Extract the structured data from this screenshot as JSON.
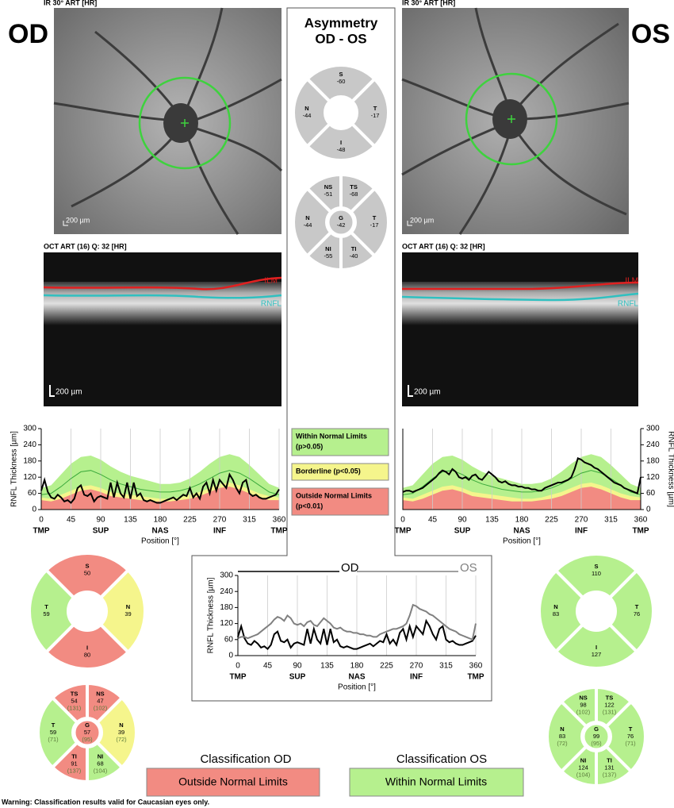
{
  "od": {
    "label": "OD",
    "fundus_label": "IR 30° ART [HR]",
    "fundus_scale": "200 µm",
    "oct_label": "OCT ART (16) Q: 32 [HR]",
    "oct_scale": "200 µm",
    "oct_ilm": "ILM",
    "oct_rnfl": "RNFL",
    "sectors_4": {
      "temporal_side": "left",
      "sectors": [
        {
          "label": "S",
          "value": 50,
          "color": "#f28b82"
        },
        {
          "label": "T",
          "value": 59,
          "color": "#b6f08e"
        },
        {
          "label": "N",
          "value": 39,
          "color": "#f5f58c"
        },
        {
          "label": "I",
          "value": 80,
          "color": "#f28b82"
        }
      ]
    },
    "sectors_6": {
      "temporal_side": "left",
      "sectors": [
        {
          "label": "TS",
          "value": 54,
          "normal": "(131)",
          "color": "#f28b82"
        },
        {
          "label": "NS",
          "value": 47,
          "normal": "(102)",
          "color": "#f28b82"
        },
        {
          "label": "T",
          "value": 59,
          "normal": "(71)",
          "color": "#b6f08e"
        },
        {
          "label": "G",
          "value": 57,
          "normal": "(95)",
          "color": "#f28b82"
        },
        {
          "label": "N",
          "value": 39,
          "normal": "(72)",
          "color": "#f5f58c"
        },
        {
          "label": "TI",
          "value": 91,
          "normal": "(137)",
          "color": "#f28b82"
        },
        {
          "label": "NI",
          "value": 68,
          "normal": "(104)",
          "color": "#b6f08e"
        }
      ]
    }
  },
  "os": {
    "label": "OS",
    "fundus_label": "IR 30° ART [HR]",
    "fundus_scale": "200 µm",
    "oct_label": "OCT ART (16) Q: 32 [HR]",
    "oct_scale": "200 µm",
    "oct_ilm": "ILM",
    "oct_rnfl": "RNFL",
    "sectors_4": {
      "temporal_side": "right",
      "sectors": [
        {
          "label": "S",
          "value": 110,
          "color": "#b6f08e"
        },
        {
          "label": "N",
          "value": 83,
          "color": "#b6f08e"
        },
        {
          "label": "T",
          "value": 76,
          "color": "#b6f08e"
        },
        {
          "label": "I",
          "value": 127,
          "color": "#b6f08e"
        }
      ]
    },
    "sectors_6": {
      "temporal_side": "right",
      "sectors": [
        {
          "label": "NS",
          "value": 98,
          "normal": "(102)",
          "color": "#b6f08e"
        },
        {
          "label": "TS",
          "value": 122,
          "normal": "(131)",
          "color": "#b6f08e"
        },
        {
          "label": "N",
          "value": 83,
          "normal": "(72)",
          "color": "#b6f08e"
        },
        {
          "label": "G",
          "value": 99,
          "normal": "(95)",
          "color": "#b6f08e"
        },
        {
          "label": "T",
          "value": 76,
          "normal": "(71)",
          "color": "#b6f08e"
        },
        {
          "label": "NI",
          "value": 124,
          "normal": "(104)",
          "color": "#b6f08e"
        },
        {
          "label": "TI",
          "value": 131,
          "normal": "(137)",
          "color": "#b6f08e"
        }
      ]
    }
  },
  "asymmetry": {
    "title": "Asymmetry",
    "subtitle": "OD - OS",
    "sectors_4": {
      "temporal_side": "right",
      "sectors": [
        {
          "label": "S",
          "value": -60,
          "color": "#c8c8c8"
        },
        {
          "label": "N",
          "value": -44,
          "color": "#c8c8c8"
        },
        {
          "label": "T",
          "value": -17,
          "color": "#c8c8c8"
        },
        {
          "label": "I",
          "value": -48,
          "color": "#c8c8c8"
        }
      ]
    },
    "sectors_6": {
      "temporal_side": "right",
      "sectors": [
        {
          "label": "NS",
          "value": -51,
          "color": "#c8c8c8"
        },
        {
          "label": "TS",
          "value": -68,
          "color": "#c8c8c8"
        },
        {
          "label": "N",
          "value": -44,
          "color": "#c8c8c8"
        },
        {
          "label": "G",
          "value": -42,
          "color": "#c8c8c8"
        },
        {
          "label": "T",
          "value": -17,
          "color": "#c8c8c8"
        },
        {
          "label": "NI",
          "value": -55,
          "color": "#c8c8c8"
        },
        {
          "label": "TI",
          "value": -40,
          "color": "#c8c8c8"
        }
      ]
    }
  },
  "legend": [
    {
      "lines": [
        "Within Normal Limits",
        "(p>0.05)"
      ],
      "color": "#b6f08e"
    },
    {
      "lines": [
        "Borderline (p<0.05)"
      ],
      "color": "#f5f58c"
    },
    {
      "lines": [
        "Outside Normal Limits",
        "(p<0.01)"
      ],
      "color": "#f28b82"
    }
  ],
  "chart_data": [
    {
      "type": "line",
      "xlim": [
        0,
        360
      ],
      "xticks": [
        0,
        45,
        90,
        135,
        180,
        225,
        270,
        315,
        360
      ],
      "ylim": [
        0,
        300
      ],
      "yticks": [
        0,
        60,
        120,
        180,
        240,
        300
      ],
      "xregions": [
        {
          "value": 0,
          "label": "TMP"
        },
        {
          "value": 90,
          "label": "SUP"
        },
        {
          "value": 180,
          "label": "NAS"
        },
        {
          "value": 270,
          "label": "INF"
        },
        {
          "value": 360,
          "label": "TMP"
        }
      ],
      "xlabel": "Position [°]",
      "ylabel": "RNFL Thickness [µm]",
      "yaxis_side": "left",
      "band_colors": {
        "within": "#b6f08e",
        "borderline": "#f5f58c",
        "outside": "#f28b82",
        "mean": "#3caa3c"
      },
      "band_x": [
        0,
        15,
        30,
        45,
        60,
        75,
        90,
        105,
        120,
        135,
        150,
        165,
        180,
        195,
        210,
        225,
        240,
        255,
        270,
        285,
        300,
        315,
        330,
        345,
        360
      ],
      "within_limit": [
        80,
        90,
        130,
        170,
        195,
        200,
        185,
        160,
        140,
        125,
        115,
        105,
        95,
        95,
        100,
        115,
        140,
        170,
        195,
        205,
        195,
        165,
        130,
        95,
        80
      ],
      "borderline_limit": [
        45,
        40,
        55,
        70,
        85,
        90,
        80,
        65,
        60,
        55,
        50,
        45,
        40,
        40,
        45,
        55,
        65,
        80,
        95,
        100,
        90,
        75,
        60,
        50,
        45
      ],
      "outside_limit": [
        35,
        30,
        40,
        55,
        70,
        75,
        65,
        50,
        45,
        40,
        35,
        30,
        30,
        30,
        35,
        40,
        50,
        65,
        80,
        85,
        75,
        60,
        45,
        35,
        35
      ],
      "normal_mean": [
        55,
        60,
        85,
        115,
        140,
        145,
        130,
        110,
        95,
        85,
        75,
        70,
        65,
        65,
        70,
        80,
        95,
        115,
        135,
        145,
        135,
        115,
        90,
        65,
        55
      ],
      "x": [
        0,
        5,
        10,
        15,
        20,
        25,
        30,
        35,
        40,
        45,
        50,
        55,
        60,
        65,
        70,
        75,
        80,
        85,
        90,
        95,
        100,
        105,
        110,
        115,
        120,
        125,
        130,
        135,
        140,
        145,
        150,
        155,
        160,
        165,
        170,
        175,
        180,
        185,
        190,
        195,
        200,
        205,
        210,
        215,
        220,
        225,
        230,
        235,
        240,
        245,
        250,
        255,
        260,
        265,
        270,
        275,
        280,
        285,
        290,
        295,
        300,
        305,
        310,
        315,
        320,
        325,
        330,
        335,
        340,
        345,
        350,
        355,
        360
      ],
      "series": [
        {
          "color": "#000000",
          "values": [
            70,
            110,
            65,
            45,
            40,
            55,
            45,
            30,
            35,
            25,
            40,
            80,
            90,
            55,
            50,
            60,
            30,
            45,
            50,
            45,
            40,
            100,
            45,
            100,
            60,
            45,
            100,
            40,
            100,
            50,
            60,
            35,
            30,
            35,
            30,
            25,
            25,
            30,
            35,
            40,
            45,
            35,
            45,
            55,
            50,
            80,
            45,
            60,
            40,
            85,
            100,
            60,
            110,
            70,
            110,
            95,
            80,
            130,
            110,
            80,
            60,
            100,
            110,
            60,
            50,
            55,
            45,
            40,
            40,
            45,
            50,
            55,
            75
          ]
        }
      ]
    },
    {
      "type": "line",
      "xlim": [
        0,
        360
      ],
      "xticks": [
        0,
        45,
        90,
        135,
        180,
        225,
        270,
        315,
        360
      ],
      "ylim": [
        0,
        300
      ],
      "yticks": [
        0,
        60,
        120,
        180,
        240,
        300
      ],
      "xregions": [
        {
          "value": 0,
          "label": "TMP"
        },
        {
          "value": 90,
          "label": "SUP"
        },
        {
          "value": 180,
          "label": "NAS"
        },
        {
          "value": 270,
          "label": "INF"
        },
        {
          "value": 360,
          "label": "TMP"
        }
      ],
      "xlabel": "Position [°]",
      "ylabel": "RNFL Thickness [µm]",
      "yaxis_side": "right",
      "band_colors": {
        "within": "#b6f08e",
        "borderline": "#f5f58c",
        "outside": "#f28b82",
        "mean": "#3caa3c"
      },
      "band_x": [
        0,
        15,
        30,
        45,
        60,
        75,
        90,
        105,
        120,
        135,
        150,
        165,
        180,
        195,
        210,
        225,
        240,
        255,
        270,
        285,
        300,
        315,
        330,
        345,
        360
      ],
      "within_limit": [
        80,
        90,
        130,
        170,
        195,
        200,
        185,
        160,
        140,
        125,
        115,
        105,
        95,
        95,
        100,
        115,
        140,
        170,
        195,
        205,
        195,
        165,
        130,
        95,
        80
      ],
      "borderline_limit": [
        45,
        40,
        55,
        70,
        85,
        90,
        80,
        65,
        60,
        55,
        50,
        45,
        40,
        40,
        45,
        55,
        65,
        80,
        95,
        100,
        90,
        75,
        60,
        50,
        45
      ],
      "outside_limit": [
        35,
        30,
        40,
        55,
        70,
        75,
        65,
        50,
        45,
        40,
        35,
        30,
        30,
        30,
        35,
        40,
        50,
        65,
        80,
        85,
        75,
        60,
        45,
        35,
        35
      ],
      "normal_mean": [
        55,
        60,
        85,
        115,
        140,
        145,
        130,
        110,
        95,
        85,
        75,
        70,
        65,
        65,
        70,
        80,
        95,
        115,
        135,
        145,
        135,
        115,
        90,
        65,
        55
      ],
      "x": [
        0,
        5,
        10,
        15,
        20,
        25,
        30,
        35,
        40,
        45,
        50,
        55,
        60,
        65,
        70,
        75,
        80,
        85,
        90,
        95,
        100,
        105,
        110,
        115,
        120,
        125,
        130,
        135,
        140,
        145,
        150,
        155,
        160,
        165,
        170,
        175,
        180,
        185,
        190,
        195,
        200,
        205,
        210,
        215,
        220,
        225,
        230,
        235,
        240,
        245,
        250,
        255,
        260,
        265,
        270,
        275,
        280,
        285,
        290,
        295,
        300,
        305,
        310,
        315,
        320,
        325,
        330,
        335,
        340,
        345,
        350,
        355,
        360
      ],
      "series": [
        {
          "color": "#000000",
          "values": [
            65,
            70,
            70,
            65,
            70,
            75,
            80,
            90,
            100,
            110,
            120,
            135,
            145,
            140,
            130,
            150,
            140,
            120,
            115,
            120,
            110,
            125,
            130,
            115,
            110,
            125,
            140,
            130,
            120,
            105,
            100,
            105,
            95,
            90,
            90,
            85,
            85,
            80,
            80,
            75,
            75,
            70,
            70,
            80,
            85,
            90,
            95,
            100,
            100,
            105,
            110,
            120,
            150,
            190,
            185,
            175,
            170,
            165,
            155,
            150,
            140,
            130,
            120,
            110,
            100,
            95,
            90,
            80,
            75,
            70,
            65,
            60,
            120
          ]
        }
      ]
    },
    {
      "type": "line",
      "xlim": [
        0,
        360
      ],
      "xticks": [
        0,
        45,
        90,
        135,
        180,
        225,
        270,
        315,
        360
      ],
      "ylim": [
        0,
        300
      ],
      "yticks": [
        0,
        60,
        120,
        180,
        240,
        300
      ],
      "xregions": [
        {
          "value": 0,
          "label": "TMP"
        },
        {
          "value": 90,
          "label": "SUP"
        },
        {
          "value": 180,
          "label": "NAS"
        },
        {
          "value": 270,
          "label": "INF"
        },
        {
          "value": 360,
          "label": "TMP"
        }
      ],
      "xlabel": "Position [°]",
      "ylabel": "RNFL Thickness [µm]",
      "yaxis_side": "left",
      "legend": "top",
      "x": [
        0,
        5,
        10,
        15,
        20,
        25,
        30,
        35,
        40,
        45,
        50,
        55,
        60,
        65,
        70,
        75,
        80,
        85,
        90,
        95,
        100,
        105,
        110,
        115,
        120,
        125,
        130,
        135,
        140,
        145,
        150,
        155,
        160,
        165,
        170,
        175,
        180,
        185,
        190,
        195,
        200,
        205,
        210,
        215,
        220,
        225,
        230,
        235,
        240,
        245,
        250,
        255,
        260,
        265,
        270,
        275,
        280,
        285,
        290,
        295,
        300,
        305,
        310,
        315,
        320,
        325,
        330,
        335,
        340,
        345,
        350,
        355,
        360
      ],
      "series": [
        {
          "name": "OD",
          "color": "#000000",
          "values": [
            70,
            110,
            65,
            45,
            40,
            55,
            45,
            30,
            35,
            25,
            40,
            80,
            90,
            55,
            50,
            60,
            30,
            45,
            50,
            45,
            40,
            100,
            45,
            100,
            60,
            45,
            100,
            40,
            100,
            50,
            60,
            35,
            30,
            35,
            30,
            25,
            25,
            30,
            35,
            40,
            45,
            35,
            45,
            55,
            50,
            80,
            45,
            60,
            40,
            85,
            100,
            60,
            110,
            70,
            110,
            95,
            80,
            130,
            110,
            80,
            60,
            100,
            110,
            60,
            50,
            55,
            45,
            40,
            40,
            45,
            50,
            55,
            75
          ]
        },
        {
          "name": "OS",
          "color": "#808080",
          "values": [
            65,
            70,
            70,
            65,
            70,
            75,
            80,
            90,
            100,
            110,
            120,
            135,
            145,
            140,
            130,
            150,
            140,
            120,
            115,
            120,
            110,
            125,
            130,
            115,
            110,
            125,
            140,
            130,
            120,
            105,
            100,
            105,
            95,
            90,
            90,
            85,
            85,
            80,
            80,
            75,
            75,
            70,
            70,
            80,
            85,
            90,
            95,
            100,
            100,
            105,
            110,
            120,
            150,
            190,
            185,
            175,
            170,
            165,
            155,
            150,
            140,
            130,
            120,
            110,
            100,
            95,
            90,
            80,
            75,
            70,
            65,
            60,
            120
          ]
        }
      ]
    }
  ],
  "classification": {
    "od": {
      "title": "Classification OD",
      "result": "Outside Normal Limits",
      "color": "#f28b82"
    },
    "os": {
      "title": "Classification OS",
      "result": "Within Normal Limits",
      "color": "#b6f08e"
    }
  },
  "warning": "Warning: Classification results valid for Caucasian eyes only."
}
